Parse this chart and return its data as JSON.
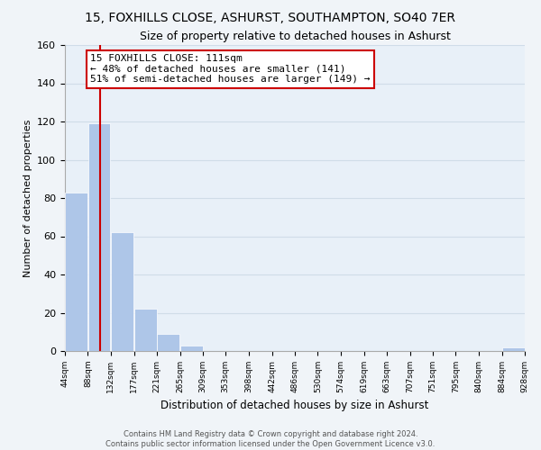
{
  "title": "15, FOXHILLS CLOSE, ASHURST, SOUTHAMPTON, SO40 7ER",
  "subtitle": "Size of property relative to detached houses in Ashurst",
  "xlabel": "Distribution of detached houses by size in Ashurst",
  "ylabel": "Number of detached properties",
  "bar_edges": [
    44,
    88,
    132,
    177,
    221,
    265,
    309,
    353,
    398,
    442,
    486,
    530,
    574,
    619,
    663,
    707,
    751,
    795,
    840,
    884,
    928
  ],
  "bar_heights": [
    83,
    119,
    62,
    22,
    9,
    3,
    0,
    0,
    0,
    0,
    0,
    0,
    0,
    0,
    0,
    0,
    0,
    0,
    0,
    2
  ],
  "bar_color": "#aec6e8",
  "bar_edge_color": "#ffffff",
  "vline_x": 111,
  "vline_color": "#cc0000",
  "ylim": [
    0,
    160
  ],
  "yticks": [
    0,
    20,
    40,
    60,
    80,
    100,
    120,
    140,
    160
  ],
  "xtick_labels": [
    "44sqm",
    "88sqm",
    "132sqm",
    "177sqm",
    "221sqm",
    "265sqm",
    "309sqm",
    "353sqm",
    "398sqm",
    "442sqm",
    "486sqm",
    "530sqm",
    "574sqm",
    "619sqm",
    "663sqm",
    "707sqm",
    "751sqm",
    "795sqm",
    "840sqm",
    "884sqm",
    "928sqm"
  ],
  "annotation_title": "15 FOXHILLS CLOSE: 111sqm",
  "annotation_line1": "← 48% of detached houses are smaller (141)",
  "annotation_line2": "51% of semi-detached houses are larger (149) →",
  "grid_color": "#d0dce8",
  "background_color": "#e8f0f8",
  "fig_background": "#f0f4f8",
  "footer_line1": "Contains HM Land Registry data © Crown copyright and database right 2024.",
  "footer_line2": "Contains public sector information licensed under the Open Government Licence v3.0."
}
